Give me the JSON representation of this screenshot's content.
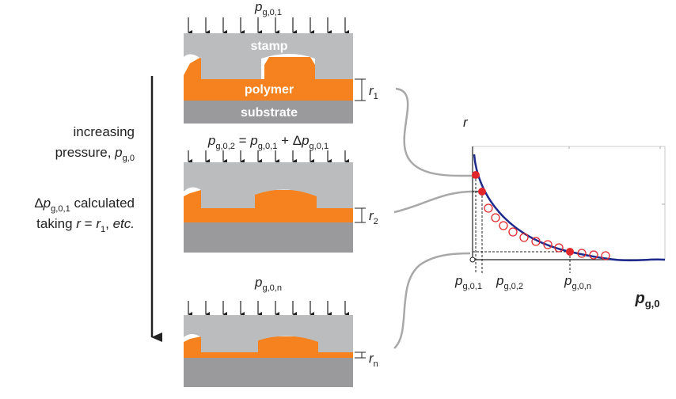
{
  "panels": [
    {
      "pressure": [
        {
          "text": "p",
          "sub": "g,0,1",
          "italic": true
        }
      ],
      "layers": [
        "stamp",
        "polymer",
        "substrate"
      ],
      "gap": [
        {
          "text": "r",
          "sub": "1",
          "italic": true
        }
      ]
    },
    {
      "pressure": [
        {
          "text": "p",
          "sub": "g,0,2",
          "italic": true
        },
        {
          "text": " = "
        },
        {
          "text": "p",
          "sub": "g,0,1",
          "italic": true
        },
        {
          "text": " + Δ"
        },
        {
          "text": "p",
          "sub": "g,0,1",
          "italic": true
        }
      ],
      "gap": [
        {
          "text": "r",
          "sub": "2",
          "italic": true
        }
      ]
    },
    {
      "pressure": [
        {
          "text": "p",
          "sub": "g,0,n",
          "italic": true
        }
      ],
      "gap": [
        {
          "text": "r",
          "sub": "n",
          "italic": true
        }
      ]
    }
  ],
  "left_text": [
    [
      {
        "text": "increasing"
      }
    ],
    [
      {
        "text": "pressure, "
      },
      {
        "text": "p",
        "sub": "g,0",
        "italic": true
      }
    ],
    [
      {
        "text": "Δ"
      },
      {
        "text": "p",
        "sub": "g,0,1",
        "italic": true
      },
      {
        "text": " calculated"
      }
    ],
    [
      {
        "text": "taking "
      },
      {
        "text": "r",
        "italic": true
      },
      {
        "text": " = "
      },
      {
        "text": "r",
        "sub": "1",
        "italic": true
      },
      {
        "text": ", "
      },
      {
        "text": "etc.",
        "italic": true
      }
    ]
  ],
  "plot": {
    "y_label": [
      {
        "text": "r",
        "italic": true
      }
    ],
    "x_label": [
      {
        "text": "p",
        "sub": "g,0",
        "italic": true
      }
    ],
    "x_markers": [
      [
        {
          "text": "p",
          "sub": "g,0,1",
          "italic": true
        }
      ],
      [
        {
          "text": "p",
          "sub": "g,0,2",
          "italic": true
        }
      ],
      [
        {
          "text": "p",
          "sub": "g,0,n",
          "italic": true
        }
      ]
    ]
  }
}
